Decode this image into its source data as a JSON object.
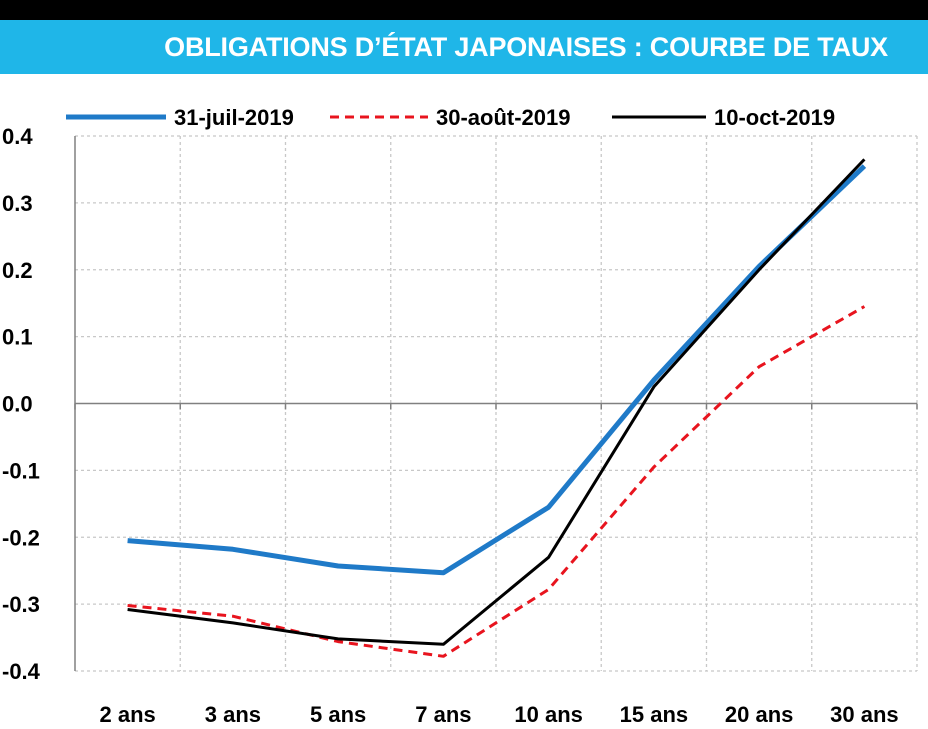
{
  "header": {
    "title": "OBLIGATIONS D’ÉTAT JAPONAISES  : COURBE DE TAUX",
    "bar_color": "#1fb6e8"
  },
  "chart_data": {
    "type": "line",
    "title": "OBLIGATIONS D’ÉTAT JAPONAISES  : COURBE DE TAUX",
    "xlabel": "",
    "ylabel": "",
    "categories": [
      "2 ans",
      "3 ans",
      "5 ans",
      "7 ans",
      "10 ans",
      "15 ans",
      "20 ans",
      "30 ans"
    ],
    "ylim": [
      -0.4,
      0.4
    ],
    "yticks": [
      0.4,
      0.3,
      0.2,
      0.1,
      0.0,
      -0.1,
      -0.2,
      -0.3,
      -0.4
    ],
    "ytick_labels": [
      "0.4",
      "0.3",
      "0.2",
      "0.1",
      "0.0",
      "-0.1",
      "-0.2",
      "-0.3",
      "-0.4"
    ],
    "grid": true,
    "legend_position": "top",
    "series": [
      {
        "name": "31-juil-2019",
        "color": "#1f7ac8",
        "style": "solid-thick",
        "values": [
          -0.205,
          -0.218,
          -0.243,
          -0.253,
          -0.155,
          0.035,
          0.205,
          0.355
        ]
      },
      {
        "name": "30-août-2019",
        "color": "#e8141e",
        "style": "dashed",
        "values": [
          -0.302,
          -0.318,
          -0.356,
          -0.378,
          -0.278,
          -0.095,
          0.055,
          0.145
        ]
      },
      {
        "name": "10-oct-2019",
        "color": "#000000",
        "style": "solid",
        "values": [
          -0.308,
          -0.328,
          -0.352,
          -0.36,
          -0.23,
          0.025,
          0.2,
          0.365
        ]
      }
    ]
  }
}
